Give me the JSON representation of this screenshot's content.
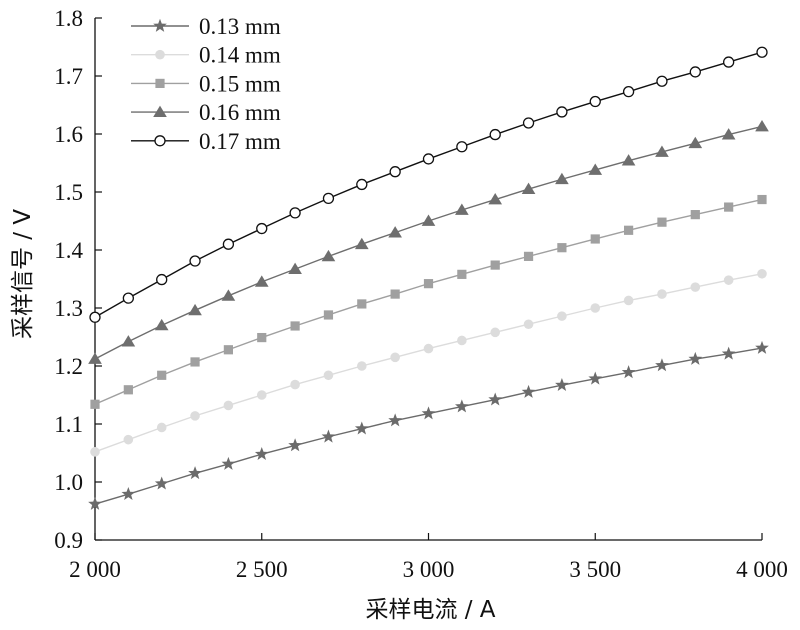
{
  "chart_data": {
    "type": "line",
    "xlabel": "采样电流 / A",
    "ylabel": "采样信号 / V",
    "xlim": [
      2000,
      4000
    ],
    "ylim": [
      0.9,
      1.8
    ],
    "x_ticks": [
      2000,
      2500,
      3000,
      3500,
      4000
    ],
    "x_tick_labels": [
      "2 000",
      "2 500",
      "3 000",
      "3 500",
      "4 000"
    ],
    "y_ticks": [
      0.9,
      1.0,
      1.1,
      1.2,
      1.3,
      1.4,
      1.5,
      1.6,
      1.7,
      1.8
    ],
    "y_tick_labels": [
      "0.9",
      "1.0",
      "1.1",
      "1.2",
      "1.3",
      "1.4",
      "1.5",
      "1.6",
      "1.7",
      "1.8"
    ],
    "grid": false,
    "legend_position": "top-left",
    "x": [
      2000,
      2100,
      2200,
      2300,
      2400,
      2500,
      2600,
      2700,
      2800,
      2900,
      3000,
      3100,
      3200,
      3300,
      3400,
      3500,
      3600,
      3700,
      3800,
      3900,
      4000
    ],
    "series": [
      {
        "name": "0.13 mm",
        "marker": "star",
        "color": "#6b6b6b",
        "values": [
          0.962,
          0.979,
          0.997,
          1.015,
          1.031,
          1.048,
          1.063,
          1.078,
          1.092,
          1.106,
          1.118,
          1.13,
          1.142,
          1.155,
          1.167,
          1.178,
          1.189,
          1.201,
          1.212,
          1.221,
          1.231
        ]
      },
      {
        "name": "0.14 mm",
        "marker": "circle-filled",
        "color": "#dcdcdc",
        "values": [
          1.052,
          1.073,
          1.094,
          1.114,
          1.132,
          1.15,
          1.168,
          1.184,
          1.2,
          1.215,
          1.23,
          1.244,
          1.258,
          1.272,
          1.286,
          1.3,
          1.313,
          1.324,
          1.336,
          1.348,
          1.359
        ]
      },
      {
        "name": "0.15 mm",
        "marker": "square",
        "color": "#a0a0a0",
        "values": [
          1.134,
          1.159,
          1.184,
          1.207,
          1.228,
          1.249,
          1.269,
          1.288,
          1.307,
          1.324,
          1.342,
          1.358,
          1.374,
          1.389,
          1.404,
          1.419,
          1.434,
          1.448,
          1.461,
          1.474,
          1.487
        ]
      },
      {
        "name": "0.16 mm",
        "marker": "triangle",
        "color": "#6e6e6e",
        "values": [
          1.212,
          1.242,
          1.27,
          1.296,
          1.321,
          1.345,
          1.367,
          1.389,
          1.41,
          1.43,
          1.45,
          1.469,
          1.487,
          1.505,
          1.522,
          1.538,
          1.554,
          1.569,
          1.584,
          1.599,
          1.613
        ]
      },
      {
        "name": "0.17 mm",
        "marker": "circle-open",
        "color": "#111111",
        "values": [
          1.284,
          1.317,
          1.349,
          1.381,
          1.41,
          1.437,
          1.464,
          1.489,
          1.513,
          1.535,
          1.557,
          1.578,
          1.599,
          1.619,
          1.638,
          1.656,
          1.673,
          1.691,
          1.707,
          1.724,
          1.741
        ]
      }
    ]
  }
}
